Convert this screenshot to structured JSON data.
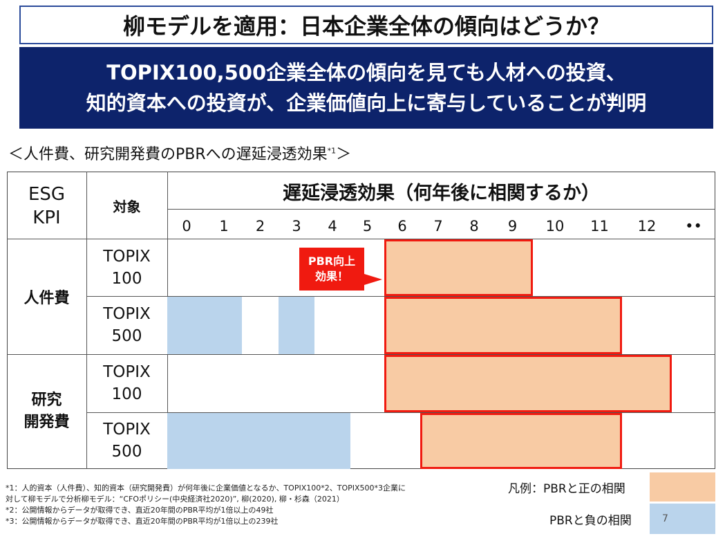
{
  "title": "柳モデルを適用：日本企業全体の傾向はどうか？",
  "banner": {
    "line1": "TOPIX100,500企業全体の傾向を見ても人材への投資、",
    "line2": "知的資本への投資が、企業価値向上に寄与していることが判明"
  },
  "subtitle": {
    "text": "＜人件費、研究開発費のPBRへの遅延浸透効果",
    "note": "*1",
    "close": "＞"
  },
  "table": {
    "col_esg": [
      "ESG",
      "KPI"
    ],
    "col_target": "対象",
    "col_timeline": "遅延浸透効果（何年後に相関するか）",
    "years": [
      "0",
      "1",
      "2",
      "3",
      "4",
      "5",
      "6",
      "7",
      "8",
      "9",
      "10",
      "11",
      "12",
      "••"
    ],
    "groups": [
      {
        "label": [
          "人件費"
        ],
        "rows": [
          {
            "target": [
              "TOPIX",
              "100"
            ],
            "positive": [
              [
                6,
                9
              ]
            ],
            "negative": []
          },
          {
            "target": [
              "TOPIX",
              "500"
            ],
            "positive": [
              [
                6,
                11
              ]
            ],
            "negative": [
              [
                0,
                1
              ],
              [
                3,
                3
              ]
            ]
          }
        ]
      },
      {
        "label": [
          "研究",
          "開発費"
        ],
        "rows": [
          {
            "target": [
              "TOPIX",
              "100"
            ],
            "positive": [
              [
                6,
                12
              ]
            ],
            "negative": []
          },
          {
            "target": [
              "TOPIX",
              "500"
            ],
            "positive": [
              [
                7,
                11
              ]
            ],
            "negative": [
              [
                0,
                4
              ]
            ]
          }
        ]
      }
    ]
  },
  "callout": [
    "PBR向上",
    "効果！"
  ],
  "footnotes": [
    "*1：人的資本（人件費）、知的資本（研究開発費）が何年後に企業価値となるか、TOPIX100*2、TOPIX500*3企業に",
    "対して柳モデルで分析柳モデル：“CFOポリシー(中央経済社2020)”, 柳(2020), 柳・杉森（2021）",
    "*2：公開情報からデータが取得でき、直近20年間のPBR平均が1倍以上の49社",
    "*3：公開情報からデータが取得でき、直近20年間のPBR平均が1倍以上の239社"
  ],
  "legend": {
    "positive": "凡例：PBRと正の相関",
    "negative": "PBRと負の相関"
  },
  "page_number": "7",
  "colors": {
    "positive_fill": "#f8cba4",
    "positive_border": "#f01a10",
    "negative_fill": "#bad4ec",
    "banner": "#0d236b"
  }
}
